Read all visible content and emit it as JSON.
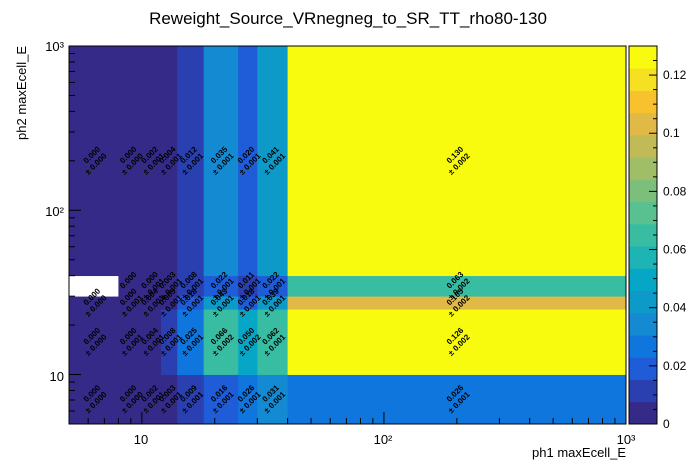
{
  "chart_data": {
    "type": "heatmap",
    "title": "Reweight_Source_VRnegneg_to_SR_TT_rho80-130",
    "xlabel": "ph1 maxEcell_E",
    "ylabel": "ph2 maxEcell_E",
    "x_scale": "log",
    "y_scale": "log",
    "xlim": [
      5,
      1000
    ],
    "ylim": [
      5,
      1000
    ],
    "x_tick_labels": [
      "10",
      "10²",
      "10³"
    ],
    "y_tick_labels": [
      "10",
      "10²",
      "10³"
    ],
    "x_bin_edges": [
      5,
      8,
      10,
      12,
      14,
      18,
      25,
      30,
      40,
      1000
    ],
    "y_bin_edges": [
      5,
      10,
      25,
      30,
      40,
      1000
    ],
    "z_range": [
      0,
      0.13
    ],
    "colorbar_ticks": [
      "0",
      "0.02",
      "0.04",
      "0.06",
      "0.08",
      "0.1",
      "0.12"
    ],
    "colorbar_tick_values": [
      0,
      0.02,
      0.04,
      0.06,
      0.08,
      0.1,
      0.12
    ],
    "cells": [
      [
        0.0,
        0.0,
        0.002,
        0.003,
        0.009,
        0.016,
        0.026,
        0.031,
        0.026
      ],
      [
        0.0,
        0.0,
        0.004,
        0.008,
        0.025,
        0.066,
        0.05,
        0.062,
        0.126
      ],
      [
        0.0,
        0.0,
        0.004,
        0.005,
        0.018,
        0.043,
        0.018,
        0.039,
        0.105
      ],
      [
        null,
        0.0,
        0.0,
        0.003,
        0.008,
        0.022,
        0.011,
        0.022,
        0.063
      ],
      [
        0.0,
        0.0,
        0.002,
        0.004,
        0.012,
        0.035,
        0.02,
        0.041,
        0.13
      ]
    ],
    "cell_labels": [
      [
        {
          "v": "0.000",
          "e": "± 0.000"
        },
        {
          "v": "0.000",
          "e": "± 0.000"
        },
        {
          "v": "0.002",
          "e": "± 0.001"
        },
        {
          "v": "0.003",
          "e": "± 0.001"
        },
        {
          "v": "0.009",
          "e": "± 0.001"
        },
        {
          "v": "0.016",
          "e": "± 0.001"
        },
        {
          "v": "0.026",
          "e": "± 0.001"
        },
        {
          "v": "0.031",
          "e": "± 0.001"
        },
        {
          "v": "0.026",
          "e": "± 0.001"
        }
      ],
      [
        {
          "v": "0.000",
          "e": "± 0.000"
        },
        {
          "v": "0.000",
          "e": "± 0.001"
        },
        {
          "v": "0.004",
          "e": "± 0.001"
        },
        {
          "v": "0.008",
          "e": "± 0.001"
        },
        {
          "v": "0.025",
          "e": "± 0.001"
        },
        {
          "v": "0.066",
          "e": "± 0.002"
        },
        {
          "v": "0.050",
          "e": "± 0.002"
        },
        {
          "v": "0.062",
          "e": "± 0.001"
        },
        {
          "v": "0.126",
          "e": "± 0.002"
        }
      ],
      [
        {
          "v": "0.000",
          "e": "± 0.000"
        },
        {
          "v": "0.000",
          "e": "± 0.001"
        },
        {
          "v": "0.004",
          "e": "± 0.001"
        },
        {
          "v": "0.005",
          "e": "± 0.001"
        },
        {
          "v": "0.018",
          "e": "± 0.001"
        },
        {
          "v": "0.043",
          "e": "± 0.001"
        },
        {
          "v": "0.018",
          "e": "± 0.001"
        },
        {
          "v": "0.039",
          "e": "± 0.001"
        },
        {
          "v": "0.105",
          "e": "± 0.002"
        }
      ],
      [
        null,
        {
          "v": "0.000",
          "e": ""
        },
        {
          "v": "0.000",
          "e": "± 0.001"
        },
        {
          "v": "0.003",
          "e": "± 0.001"
        },
        {
          "v": "0.008",
          "e": "± 0.001"
        },
        {
          "v": "0.022",
          "e": "± 0.001"
        },
        {
          "v": "0.011",
          "e": "± 0.001"
        },
        {
          "v": "0.022",
          "e": "± 0.001"
        },
        {
          "v": "0.063",
          "e": "± 0.002"
        }
      ],
      [
        {
          "v": "0.000",
          "e": "± 0.000"
        },
        {
          "v": "0.000",
          "e": "± 0.000"
        },
        {
          "v": "0.002",
          "e": "± 0.001"
        },
        {
          "v": "0.004",
          "e": "± 0.001"
        },
        {
          "v": "0.012",
          "e": "± 0.001"
        },
        {
          "v": "0.035",
          "e": "± 0.001"
        },
        {
          "v": "0.020",
          "e": "± 0.001"
        },
        {
          "v": "0.041",
          "e": "± 0.001"
        },
        {
          "v": "0.130",
          "e": "± 0.002"
        }
      ]
    ],
    "palette": [
      "#352a87",
      "#2a3fb0",
      "#1f5cd8",
      "#0f76de",
      "#148ad2",
      "#0d9ac9",
      "#06a7c6",
      "#1fb4b4",
      "#38bca2",
      "#59c18f",
      "#7cbf7b",
      "#a0bd67",
      "#c0bb57",
      "#e0b946",
      "#f8c22f",
      "#f5e022",
      "#f9fb0e"
    ],
    "empty_color": "#ffffff"
  }
}
